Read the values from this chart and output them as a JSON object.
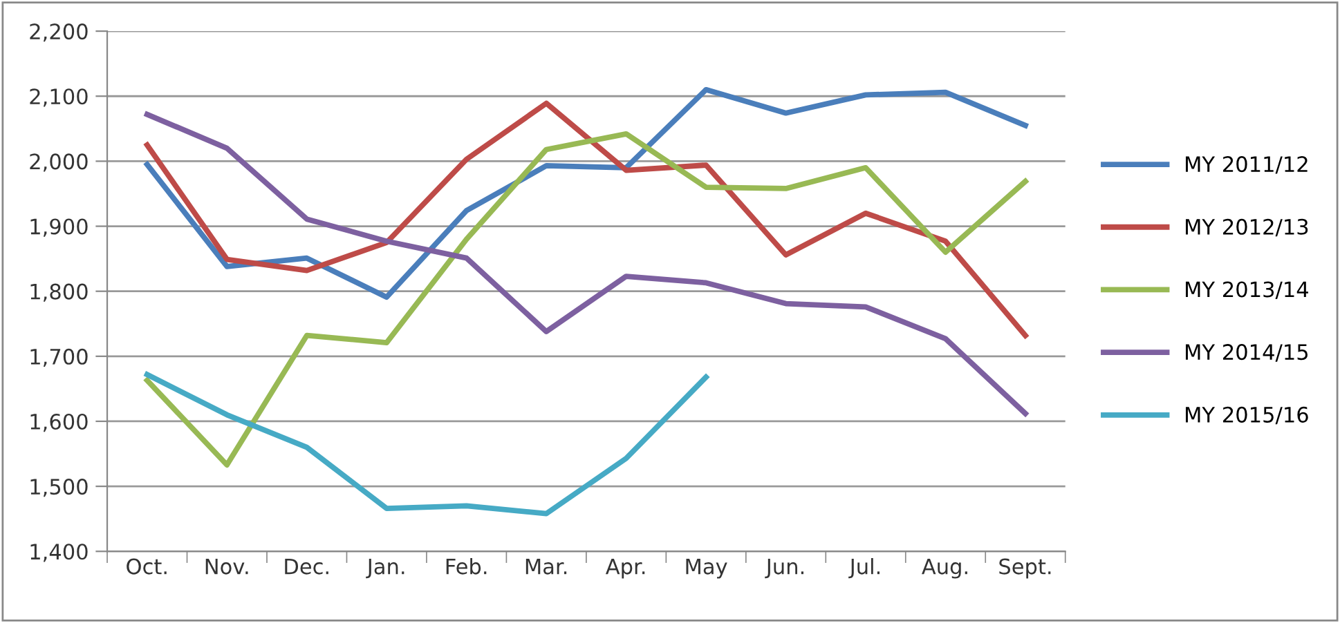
{
  "chart_data": {
    "type": "line",
    "categories": [
      "Oct.",
      "Nov.",
      "Dec.",
      "Jan.",
      "Feb.",
      "Mar.",
      "Apr.",
      "May",
      "Jun.",
      "Jul.",
      "Aug.",
      "Sept."
    ],
    "series": [
      {
        "name": "MY 2011/12",
        "color": "#4a7ebb",
        "values": [
          1995,
          1838,
          1851,
          1791,
          1924,
          1993,
          1990,
          2110,
          2074,
          2102,
          2106,
          2055
        ]
      },
      {
        "name": "MY 2012/13",
        "color": "#be4b48",
        "values": [
          2025,
          1849,
          1832,
          1875,
          2003,
          2089,
          1986,
          1994,
          1856,
          1920,
          1877,
          1732
        ]
      },
      {
        "name": "MY 2013/14",
        "color": "#98b954",
        "values": [
          1663,
          1533,
          1732,
          1721,
          1880,
          2018,
          2042,
          1960,
          1958,
          1990,
          1860,
          1969
        ]
      },
      {
        "name": "MY 2014/15",
        "color": "#7d60a0",
        "values": [
          2072,
          2020,
          1911,
          1877,
          1851,
          1738,
          1823,
          1813,
          1781,
          1776,
          1727,
          1612
        ]
      },
      {
        "name": "MY 2015/16",
        "color": "#46aac5",
        "values": [
          1672,
          1610,
          1560,
          1466,
          1470,
          1458,
          1543,
          1668,
          null,
          null,
          null,
          null
        ]
      }
    ],
    "ylim": [
      1400,
      2200
    ],
    "yticks": [
      {
        "value": 1400,
        "label": "1,400"
      },
      {
        "value": 1500,
        "label": "1,500"
      },
      {
        "value": 1600,
        "label": "1,600"
      },
      {
        "value": 1700,
        "label": "1,700"
      },
      {
        "value": 1800,
        "label": "1,800"
      },
      {
        "value": 1900,
        "label": "1,900"
      },
      {
        "value": 2000,
        "label": "2,000"
      },
      {
        "value": 2100,
        "label": "2,100"
      },
      {
        "value": 2200,
        "label": "2,200"
      }
    ],
    "grid": "y",
    "legend": "right",
    "marker": "none",
    "line_style": "solid"
  }
}
